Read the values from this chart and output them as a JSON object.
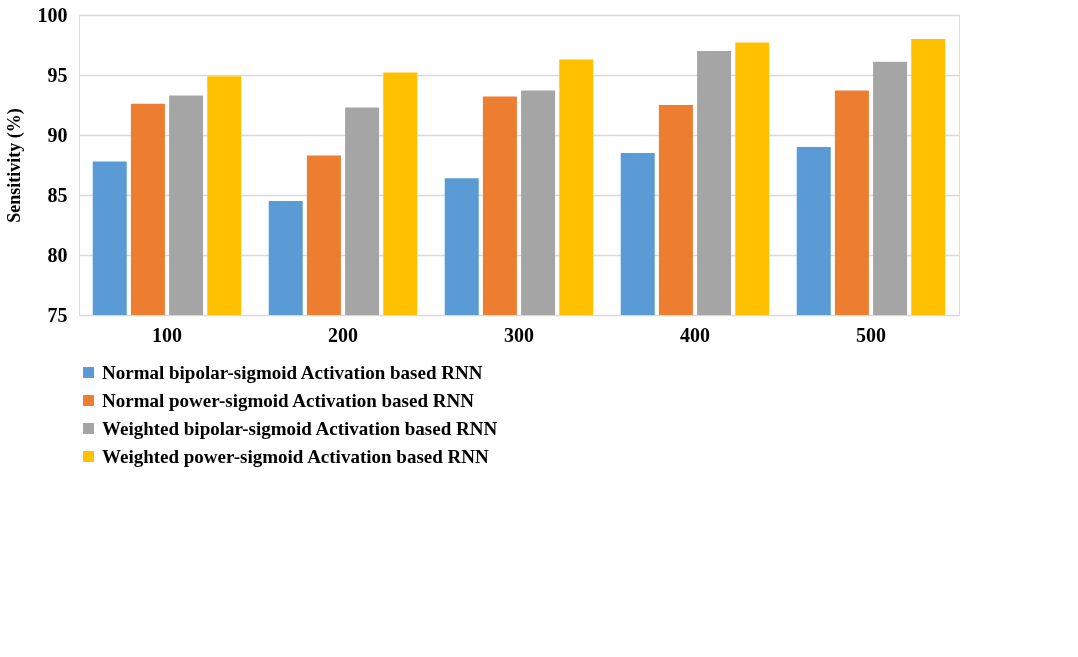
{
  "chart_data": {
    "type": "bar",
    "ylabel": "Sensitivity (%)",
    "categories": [
      "100",
      "200",
      "300",
      "400",
      "500"
    ],
    "series": [
      {
        "name": "Normal bipolar-sigmoid Activation based RNN",
        "color": "#5b9bd5",
        "values": [
          87.8,
          84.5,
          86.4,
          88.5,
          89.0
        ]
      },
      {
        "name": "Normal power-sigmoid  Activation based RNN",
        "color": "#ed7d31",
        "values": [
          92.6,
          88.3,
          93.2,
          92.5,
          93.7
        ]
      },
      {
        "name": "Weighted bipolar-sigmoid Activation based RNN",
        "color": "#a5a5a5",
        "values": [
          93.3,
          92.3,
          93.7,
          97.0,
          96.1
        ]
      },
      {
        "name": "Weighted power-sigmoid  Activation based RNN",
        "color": "#ffc000",
        "values": [
          94.9,
          95.2,
          96.3,
          97.7,
          98.0
        ]
      }
    ],
    "ylim": [
      75,
      100
    ],
    "yticks": [
      75,
      80,
      85,
      90,
      95,
      100
    ],
    "grid": "y",
    "legend": "bottom"
  }
}
